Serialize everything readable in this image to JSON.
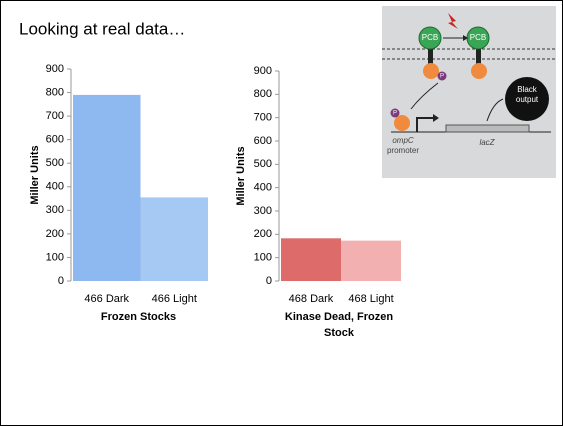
{
  "title": "Looking at real data…",
  "chart_data": [
    {
      "type": "bar",
      "categories": [
        "466 Dark",
        "466 Light"
      ],
      "values": [
        790,
        355
      ],
      "colors": [
        "#8db8f0",
        "#a6c9f4"
      ],
      "ylim": [
        0,
        900
      ],
      "yticks": [
        0,
        100,
        200,
        300,
        400,
        500,
        600,
        700,
        800,
        900
      ],
      "ylabel": "Miller Units",
      "xlabel": "Frozen Stocks"
    },
    {
      "type": "bar",
      "categories": [
        "468 Dark",
        "468 Light"
      ],
      "values": [
        183,
        173
      ],
      "colors": [
        "#dc6b6a",
        "#f3b0b0"
      ],
      "ylim": [
        0,
        900
      ],
      "yticks": [
        0,
        100,
        200,
        300,
        400,
        500,
        600,
        700,
        800,
        900
      ],
      "ylabel": "Miller Units",
      "xlabel": "Kinase Dead, Frozen Stock"
    }
  ],
  "diagram": {
    "receptor_left": "PCB",
    "receptor_right": "PCB",
    "phospho_top": "P",
    "phospho_bottom": "P",
    "output": "Black output",
    "promoter_gene": "ompC",
    "promoter_word": "promoter",
    "gene": "lacZ"
  }
}
